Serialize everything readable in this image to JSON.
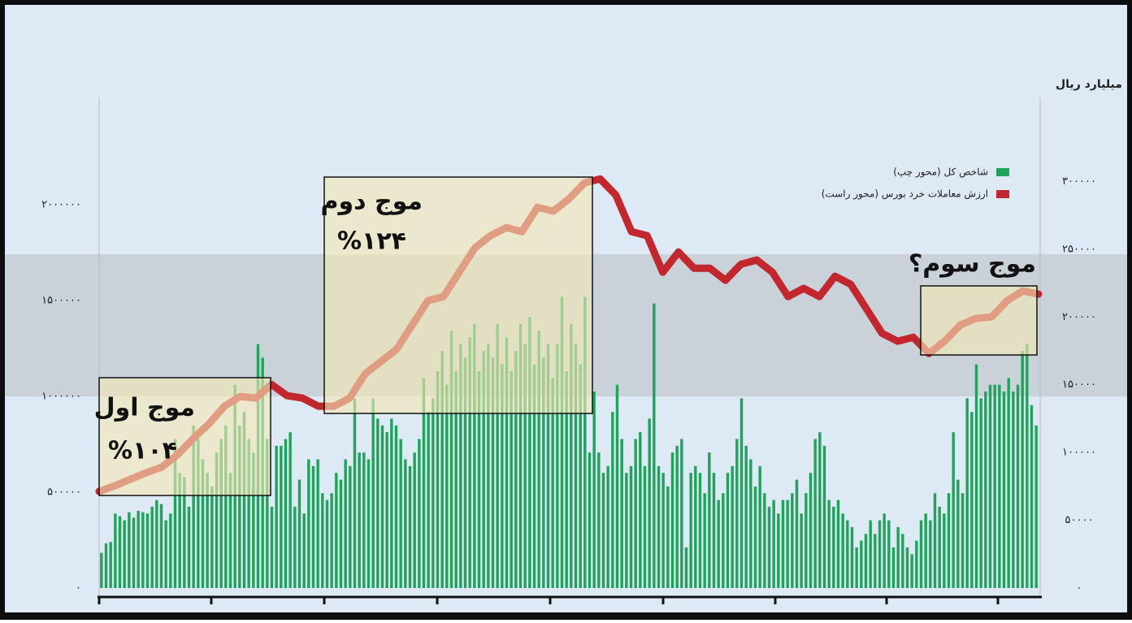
{
  "chart_data": {
    "type": "bar",
    "y2label": "میلیارد ریال",
    "ylim": [
      0,
      2560000
    ],
    "yticks": [
      {
        "value": 0,
        "label": "۰"
      },
      {
        "value": 500000,
        "label": "۵۰۰۰۰۰"
      },
      {
        "value": 1000000,
        "label": "۱۰۰۰۰۰۰"
      },
      {
        "value": 1500000,
        "label": "۱۵۰۰۰۰۰"
      },
      {
        "value": 2000000,
        "label": "۲۰۰۰۰۰۰"
      }
    ],
    "y2lim": [
      0,
      362000
    ],
    "y2ticks": [
      {
        "value": 0,
        "label": "۰"
      },
      {
        "value": 50000,
        "label": "۵۰۰۰۰"
      },
      {
        "value": 100000,
        "label": "۱۰۰۰۰۰"
      },
      {
        "value": 150000,
        "label": "۱۵۰۰۰۰"
      },
      {
        "value": 200000,
        "label": "۲۰۰۰۰۰"
      },
      {
        "value": 250000,
        "label": "۲۵۰۰۰۰"
      },
      {
        "value": 300000,
        "label": "۳۰۰۰۰۰"
      }
    ],
    "series": [
      {
        "name": "شاخص کل (محور چپ)",
        "color": "#1fa35a",
        "type": "bar",
        "axis": "y2",
        "values": [
          26000,
          33000,
          34000,
          55000,
          53000,
          50000,
          56000,
          52000,
          57000,
          56000,
          55000,
          60000,
          65000,
          62000,
          50000,
          55000,
          110000,
          85000,
          82000,
          60000,
          120000,
          110000,
          95000,
          85000,
          75000,
          100000,
          110000,
          120000,
          85000,
          150000,
          120000,
          130000,
          110000,
          100000,
          180000,
          170000,
          110000,
          60000,
          105000,
          105000,
          110000,
          115000,
          60000,
          80000,
          55000,
          95000,
          90000,
          95000,
          70000,
          65000,
          70000,
          85000,
          80000,
          95000,
          90000,
          140000,
          100000,
          100000,
          95000,
          140000,
          125000,
          120000,
          115000,
          125000,
          120000,
          110000,
          95000,
          90000,
          100000,
          110000,
          155000,
          130000,
          140000,
          160000,
          175000,
          150000,
          190000,
          160000,
          180000,
          170000,
          185000,
          195000,
          160000,
          175000,
          180000,
          170000,
          195000,
          165000,
          185000,
          160000,
          175000,
          195000,
          180000,
          200000,
          165000,
          190000,
          170000,
          180000,
          155000,
          180000,
          215000,
          160000,
          195000,
          180000,
          165000,
          215000,
          100000,
          145000,
          100000,
          85000,
          90000,
          130000,
          150000,
          110000,
          85000,
          90000,
          110000,
          115000,
          90000,
          125000,
          210000,
          90000,
          85000,
          75000,
          100000,
          105000,
          110000,
          30000,
          85000,
          90000,
          85000,
          70000,
          100000,
          85000,
          65000,
          70000,
          85000,
          90000,
          110000,
          140000,
          105000,
          95000,
          75000,
          90000,
          70000,
          60000,
          65000,
          55000,
          65000,
          65000,
          70000,
          80000,
          55000,
          70000,
          85000,
          110000,
          115000,
          105000,
          65000,
          60000,
          65000,
          55000,
          50000,
          45000,
          30000,
          35000,
          40000,
          50000,
          40000,
          50000,
          55000,
          50000,
          30000,
          45000,
          40000,
          30000,
          25000,
          35000,
          50000,
          55000,
          50000,
          70000,
          60000,
          55000,
          70000,
          115000,
          80000,
          70000,
          140000,
          130000,
          165000,
          140000,
          145000,
          150000,
          150000,
          150000,
          145000,
          155000,
          145000,
          150000,
          175000,
          180000,
          135000,
          120000
        ]
      },
      {
        "name": "ارزش معاملات خرد بورس (محور راست)",
        "color": "#c1272d",
        "type": "line",
        "axis": "y",
        "values": [
          504000,
          534000,
          568000,
          602000,
          631000,
          695000,
          780000,
          856000,
          949000,
          1000000,
          991000,
          1063000,
          1004000,
          991000,
          949000,
          949000,
          991000,
          1119000,
          1182000,
          1246000,
          1373000,
          1500000,
          1521000,
          1648000,
          1775000,
          1839000,
          1881000,
          1860000,
          1987000,
          1966000,
          2030000,
          2114000,
          2135000,
          2051000,
          1860000,
          1839000,
          1648000,
          1754000,
          1669000,
          1669000,
          1606000,
          1690000,
          1712000,
          1648000,
          1521000,
          1564000,
          1521000,
          1627000,
          1585000,
          1458000,
          1330000,
          1288000,
          1309000,
          1224000,
          1288000,
          1373000,
          1407000,
          1415000,
          1500000,
          1551000,
          1534000
        ]
      }
    ],
    "annotations": [
      {
        "text": "موج اول",
        "sub": "%۱۰۴"
      },
      {
        "text": "موج دوم",
        "sub": "%۱۲۴"
      },
      {
        "text": "موج سوم؟"
      }
    ]
  }
}
